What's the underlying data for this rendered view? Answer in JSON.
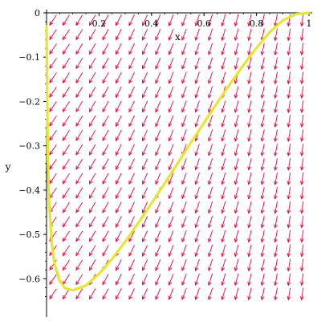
{
  "chart_data": {
    "type": "line",
    "subtype": "direction-field-with-solution-curve",
    "title": "",
    "xlabel": "x",
    "ylabel": "y",
    "xlim": [
      0,
      1
    ],
    "ylim": [
      -0.65,
      0
    ],
    "x_ticks": [
      0.2,
      0.4,
      0.6,
      0.8,
      1
    ],
    "x_tick_labels": [
      "0.2",
      "0.4",
      "0.6",
      "0.8",
      "1"
    ],
    "y_ticks": [
      0,
      -0.1,
      -0.2,
      -0.3,
      -0.4,
      -0.5,
      -0.6
    ],
    "y_tick_labels": [
      "0",
      "−0.1",
      "−0.2",
      "−0.3",
      "−0.4",
      "−0.5",
      "−0.6"
    ],
    "grid": false,
    "legend": "none",
    "field": {
      "color": "#e8003a",
      "columns": 20,
      "rows": 20
    },
    "series": [
      {
        "color": "#e6e632",
        "x": [
          0.0,
          0.005,
          0.01,
          0.02,
          0.03,
          0.05,
          0.07,
          0.1,
          0.15,
          0.2,
          0.25,
          0.3,
          0.35,
          0.4,
          0.45,
          0.5,
          0.55,
          0.6,
          0.65,
          0.7,
          0.75,
          0.8,
          0.85,
          0.9,
          0.95,
          1.0
        ],
        "y": [
          -0.03,
          -0.33,
          -0.43,
          -0.52,
          -0.566,
          -0.604,
          -0.621,
          -0.626,
          -0.615,
          -0.589,
          -0.555,
          -0.516,
          -0.474,
          -0.43,
          -0.385,
          -0.339,
          -0.293,
          -0.248,
          -0.203,
          -0.16,
          -0.118,
          -0.079,
          -0.044,
          -0.017,
          -0.003,
          0.0
        ]
      }
    ]
  }
}
